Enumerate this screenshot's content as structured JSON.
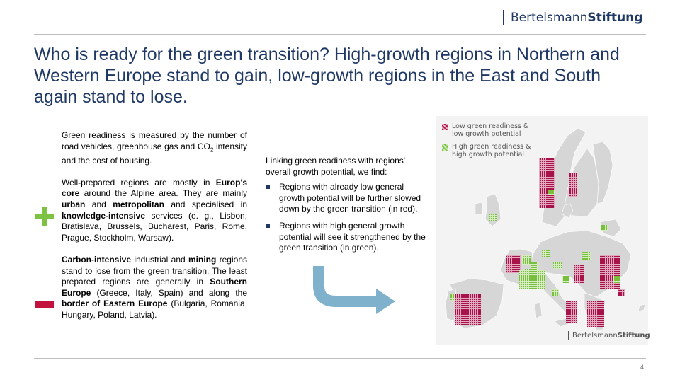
{
  "brand": {
    "part1": "Bertelsmann",
    "part2": "Stiftung"
  },
  "title": "Who is ready for the green transition? High-growth regions in Northern and Western Europe stand to gain, low-growth regions in the East and South again stand to lose.",
  "left": {
    "p1": {
      "t1": "Green readiness is measured by the number of road vehicles, greenhouse gas and CO",
      "sub": "2",
      "t2": " intensity and the cost of housing."
    },
    "p2": {
      "t1": "Well-prepared regions are mostly in ",
      "b1": "Europ's core",
      "t2": " around the Alpine area. They are mainly ",
      "b2": "urban",
      "t3": " and ",
      "b3": "metropolitan",
      "t4": " and specialised in ",
      "b4": "knowledge-intensive",
      "t5": " services (e. g., Lisbon, Bratislava, Brussels, Bucharest, Paris, Rome, Prague, Stockholm, Warsaw)."
    },
    "p3": {
      "b1": "Carbon-intensive",
      "t1": " industrial and ",
      "b2": "mining",
      "t2": " regions stand to lose from the green transition. The least prepared regions are generally in ",
      "b3": "Southern Europe",
      "t3": " (Greece, Italy, Spain) and along the ",
      "b4": "border of Eastern Europe",
      "t4": " (Bulgaria, Romania, Hungary, Poland, Latvia)."
    }
  },
  "middle": {
    "intro": "Linking green readiness with regions' overall growth potential, we find:",
    "bullets": [
      "Regions with already low general growth potential will be further slowed down by the green transition (in red).",
      "Regions with high general growth potential will see it strengthened by the green transition (in green)."
    ]
  },
  "map": {
    "legend": [
      {
        "label": "Low green readiness & low growth potential",
        "color": "#b0174e"
      },
      {
        "label": "High green readiness & high growth potential",
        "color": "#7dc242"
      }
    ],
    "brand": {
      "part1": "Bertelsmann",
      "part2": "Stiftung"
    }
  },
  "colors": {
    "title": "#1f3864",
    "plus": "#7dc242",
    "minus": "#c4123f",
    "arrow": "#7fb1cc",
    "land": "#d6d6d6"
  },
  "page_number": "4"
}
